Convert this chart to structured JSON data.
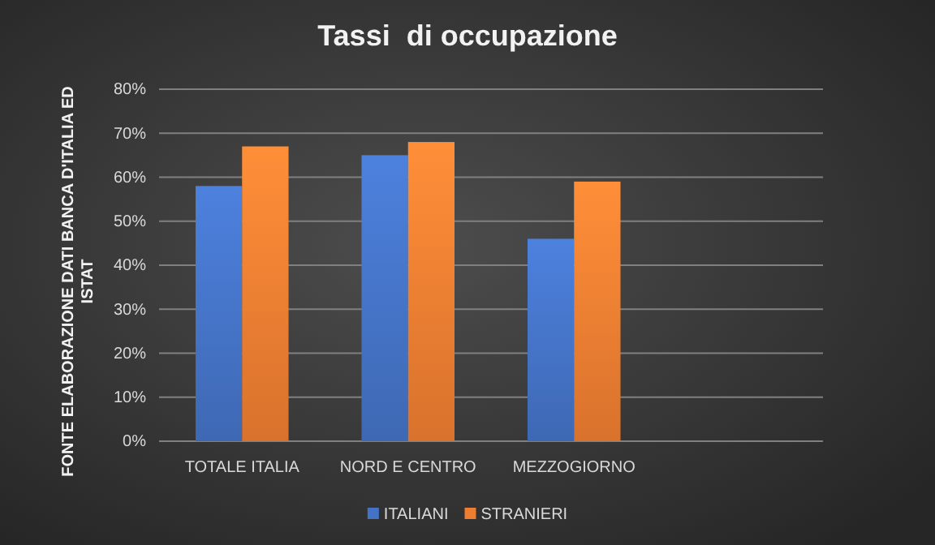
{
  "chart_data": {
    "type": "bar",
    "title": "Tassi  di occupazione",
    "ylabel": "FONTE ELABORAZIONE DATI BANCA D'ITALIA ED ISTAT",
    "categories": [
      "TOTALE ITALIA",
      "NORD E CENTRO",
      "MEZZOGIORNO",
      null
    ],
    "series": [
      {
        "name": "ITALIANI",
        "color": "#4472c4",
        "values": [
          58,
          65,
          46,
          null
        ]
      },
      {
        "name": "STRANIERI",
        "color": "#ed7d31",
        "values": [
          67,
          68,
          59,
          null
        ]
      }
    ],
    "ylim": [
      0,
      80
    ],
    "yticks": [
      {
        "value": 0,
        "label": "0%"
      },
      {
        "value": 10,
        "label": "10%"
      },
      {
        "value": 20,
        "label": "20%"
      },
      {
        "value": 30,
        "label": "30%"
      },
      {
        "value": 40,
        "label": "40%"
      },
      {
        "value": 50,
        "label": "50%"
      },
      {
        "value": 60,
        "label": "60%"
      },
      {
        "value": 70,
        "label": "70%"
      },
      {
        "value": 80,
        "label": "80%"
      }
    ],
    "grid": "y",
    "legend": "bottom"
  }
}
